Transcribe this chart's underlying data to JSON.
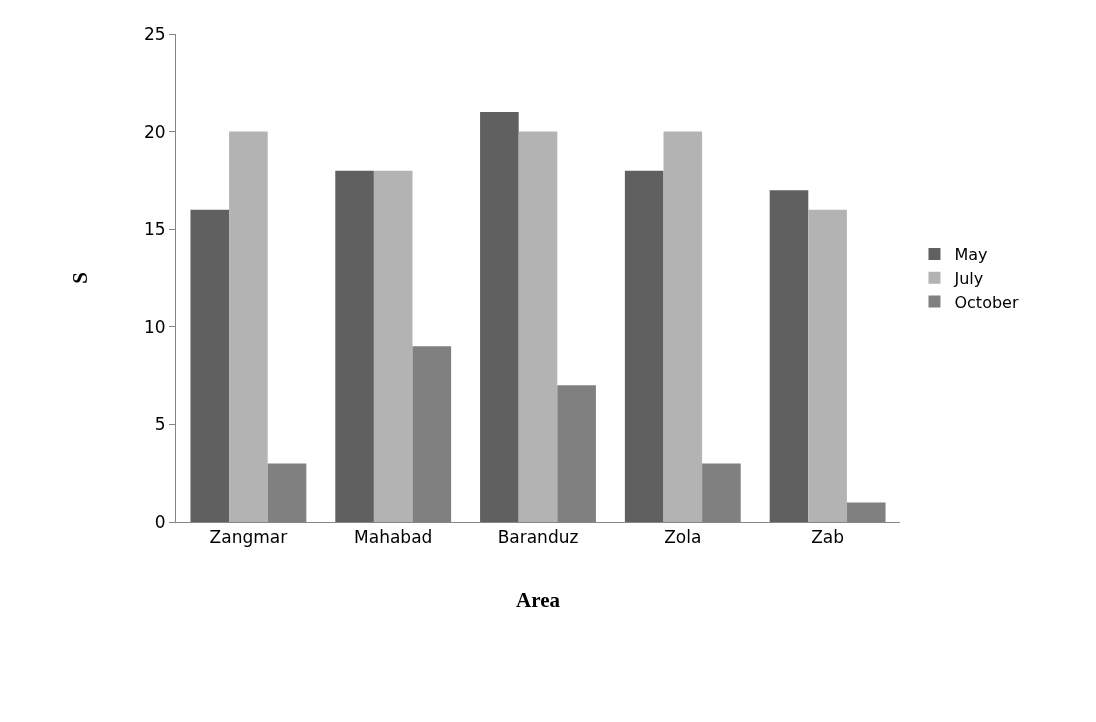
{
  "chart_data": {
    "type": "bar",
    "xlabel": "Area",
    "ylabel": "S",
    "categories": [
      "Zangmar",
      "Mahabad",
      "Baranduz",
      "Zola",
      "Zab"
    ],
    "series": [
      {
        "name": "May",
        "color": "#606060",
        "values": [
          16,
          18,
          21,
          18,
          17
        ]
      },
      {
        "name": "July",
        "color": "#b3b3b3",
        "values": [
          20,
          18,
          20,
          20,
          16
        ]
      },
      {
        "name": "October",
        "color": "#808080",
        "values": [
          3,
          9,
          7,
          3,
          1
        ]
      }
    ],
    "ylim": [
      0,
      25
    ],
    "yticks": [
      0,
      5,
      10,
      15,
      20,
      25
    ],
    "grid": false,
    "legend": "right"
  }
}
